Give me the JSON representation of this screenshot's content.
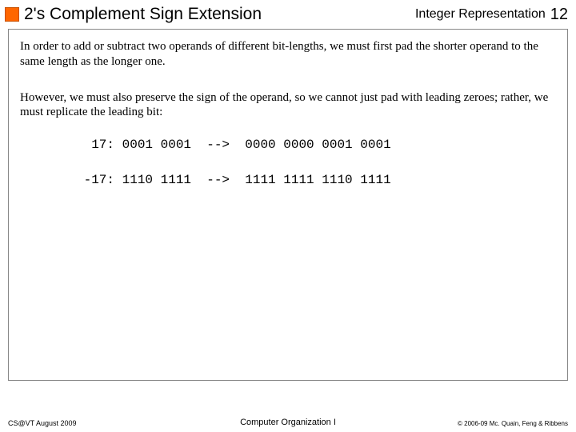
{
  "header": {
    "title": "2's Complement Sign Extension",
    "topic": "Integer Representation",
    "page_number": "12",
    "accent_color": "#ff6600"
  },
  "body": {
    "paragraph1": "In order to add or subtract two operands of different bit-lengths, we must first pad the shorter operand to the same length as the longer one.",
    "paragraph2": "However, we must also preserve the sign of the operand, so we cannot just pad with leading zeroes; rather, we must replicate the leading bit:",
    "example1": "  17: 0001 0001  -->  0000 0000 0001 0001",
    "example2": " -17: 1110 1111  -->  1111 1111 1110 1111"
  },
  "footer": {
    "left": "CS@VT August 2009",
    "center": "Computer Organization I",
    "right": "© 2006-09 Mc. Quain, Feng & Ribbens"
  }
}
